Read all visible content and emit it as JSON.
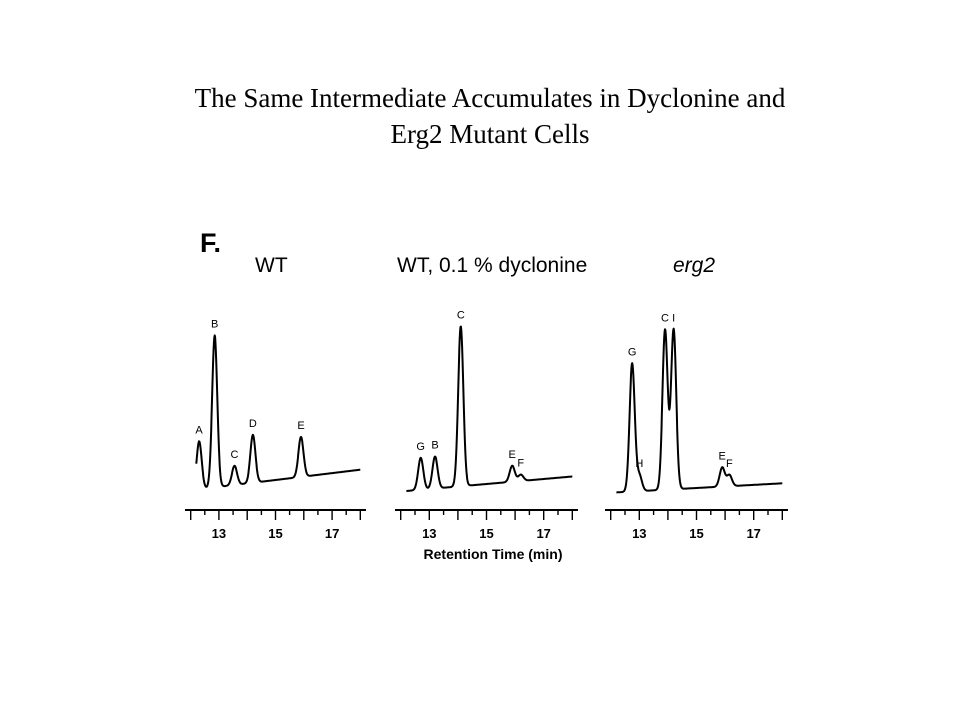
{
  "title": {
    "line1": "The Same Intermediate Accumulates in Dyclonine and",
    "line2": "Erg2 Mutant Cells"
  },
  "chart_data": {
    "type": "line",
    "figure_label": "F.",
    "xlabel": "Retention Time (min)",
    "xticks": [
      13,
      15,
      17
    ],
    "panels": [
      {
        "title": "WT",
        "title_italic": false,
        "xlim": [
          11.8,
          18.2
        ],
        "peaks": [
          {
            "label": "A",
            "x": 12.3,
            "y": 0.3
          },
          {
            "label": "B",
            "x": 12.85,
            "y": 0.95
          },
          {
            "label": "C",
            "x": 13.55,
            "y": 0.12
          },
          {
            "label": "D",
            "x": 14.2,
            "y": 0.3
          },
          {
            "label": "E",
            "x": 15.9,
            "y": 0.25
          }
        ]
      },
      {
        "title": "WT, 0.1 % dyclonine",
        "title_italic": false,
        "xlim": [
          11.8,
          18.2
        ],
        "peaks": [
          {
            "label": "G",
            "x": 12.7,
            "y": 0.2
          },
          {
            "label": "B",
            "x": 13.2,
            "y": 0.2
          },
          {
            "label": "C",
            "x": 14.1,
            "y": 1.0
          },
          {
            "label": "E",
            "x": 15.9,
            "y": 0.1
          },
          {
            "label": "F",
            "x": 16.2,
            "y": 0.04
          }
        ]
      },
      {
        "title": "erg2",
        "title_italic": true,
        "xlim": [
          11.8,
          18.2
        ],
        "peaks": [
          {
            "label": "G",
            "x": 12.75,
            "y": 0.8
          },
          {
            "label": "H",
            "x": 13.0,
            "y": 0.1
          },
          {
            "label": "C",
            "x": 13.9,
            "y": 1.0
          },
          {
            "label": "I",
            "x": 14.2,
            "y": 1.0
          },
          {
            "label": "E",
            "x": 15.9,
            "y": 0.12
          },
          {
            "label": "F",
            "x": 16.15,
            "y": 0.07
          }
        ]
      }
    ]
  }
}
